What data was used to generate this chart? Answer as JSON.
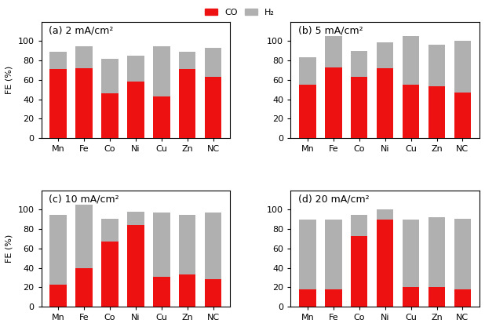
{
  "panels": [
    {
      "label": "(a) 2 mA/cm²",
      "categories": [
        "Mn",
        "Fe",
        "Co",
        "Ni",
        "Cu",
        "Zn",
        "NC"
      ],
      "CO": [
        71,
        72,
        46,
        58,
        43,
        71,
        63
      ],
      "H2": [
        18,
        23,
        36,
        27,
        52,
        18,
        30
      ]
    },
    {
      "label": "(b) 5 mA/cm²",
      "categories": [
        "Mn",
        "Fe",
        "Co",
        "Ni",
        "Cu",
        "Zn",
        "NC"
      ],
      "CO": [
        55,
        73,
        63,
        72,
        55,
        53,
        47
      ],
      "H2": [
        28,
        32,
        27,
        27,
        50,
        43,
        53
      ]
    },
    {
      "label": "(c) 10 mA/cm²",
      "categories": [
        "Mn",
        "Fe",
        "Co",
        "Ni",
        "Cu",
        "Zn",
        "NC"
      ],
      "CO": [
        23,
        40,
        67,
        84,
        31,
        33,
        28
      ],
      "H2": [
        72,
        65,
        24,
        14,
        66,
        62,
        69
      ]
    },
    {
      "label": "(d) 20 mA/cm²",
      "categories": [
        "Mn",
        "Fe",
        "Co",
        "Ni",
        "Cu",
        "Zn",
        "NC"
      ],
      "CO": [
        18,
        18,
        73,
        90,
        20,
        20,
        18
      ],
      "H2": [
        72,
        72,
        22,
        10,
        70,
        72,
        73
      ]
    }
  ],
  "co_color": "#ee1111",
  "h2_color": "#b0b0b0",
  "ylabel": "FE (%)",
  "ylim": [
    0,
    120
  ],
  "yticks": [
    0,
    20,
    40,
    60,
    80,
    100
  ],
  "bar_width": 0.65,
  "legend_co": "CO",
  "legend_h2": "H₂",
  "title_fontsize": 9,
  "label_fontsize": 8,
  "tick_fontsize": 8,
  "hspace": 0.45,
  "wspace": 0.32
}
